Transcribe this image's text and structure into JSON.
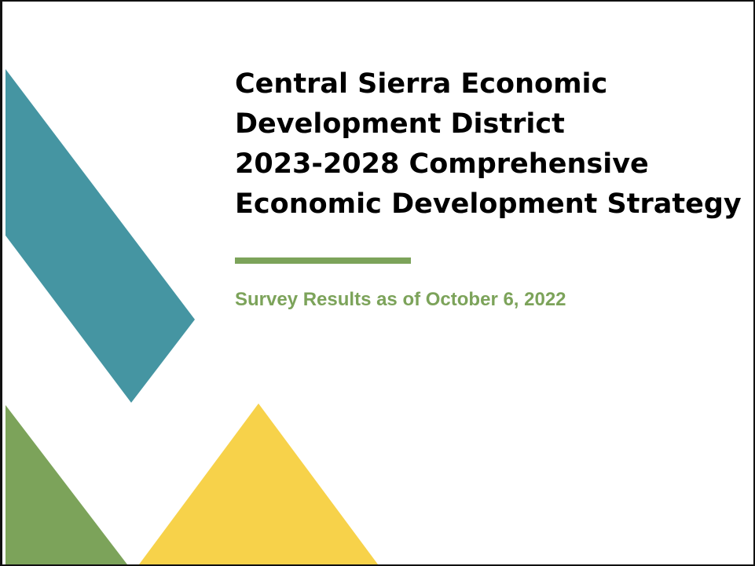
{
  "slide": {
    "title_lines": [
      "Central Sierra Economic",
      "Development District",
      "2023-2028 Comprehensive",
      "Economic Development Strategy"
    ],
    "subtitle": "Survey Results as of October 6, 2022"
  },
  "colors": {
    "teal": "#4595a2",
    "green": "#7ca35a",
    "yellow": "#f7d24a",
    "title_text": "#000000",
    "border": "#111111"
  }
}
